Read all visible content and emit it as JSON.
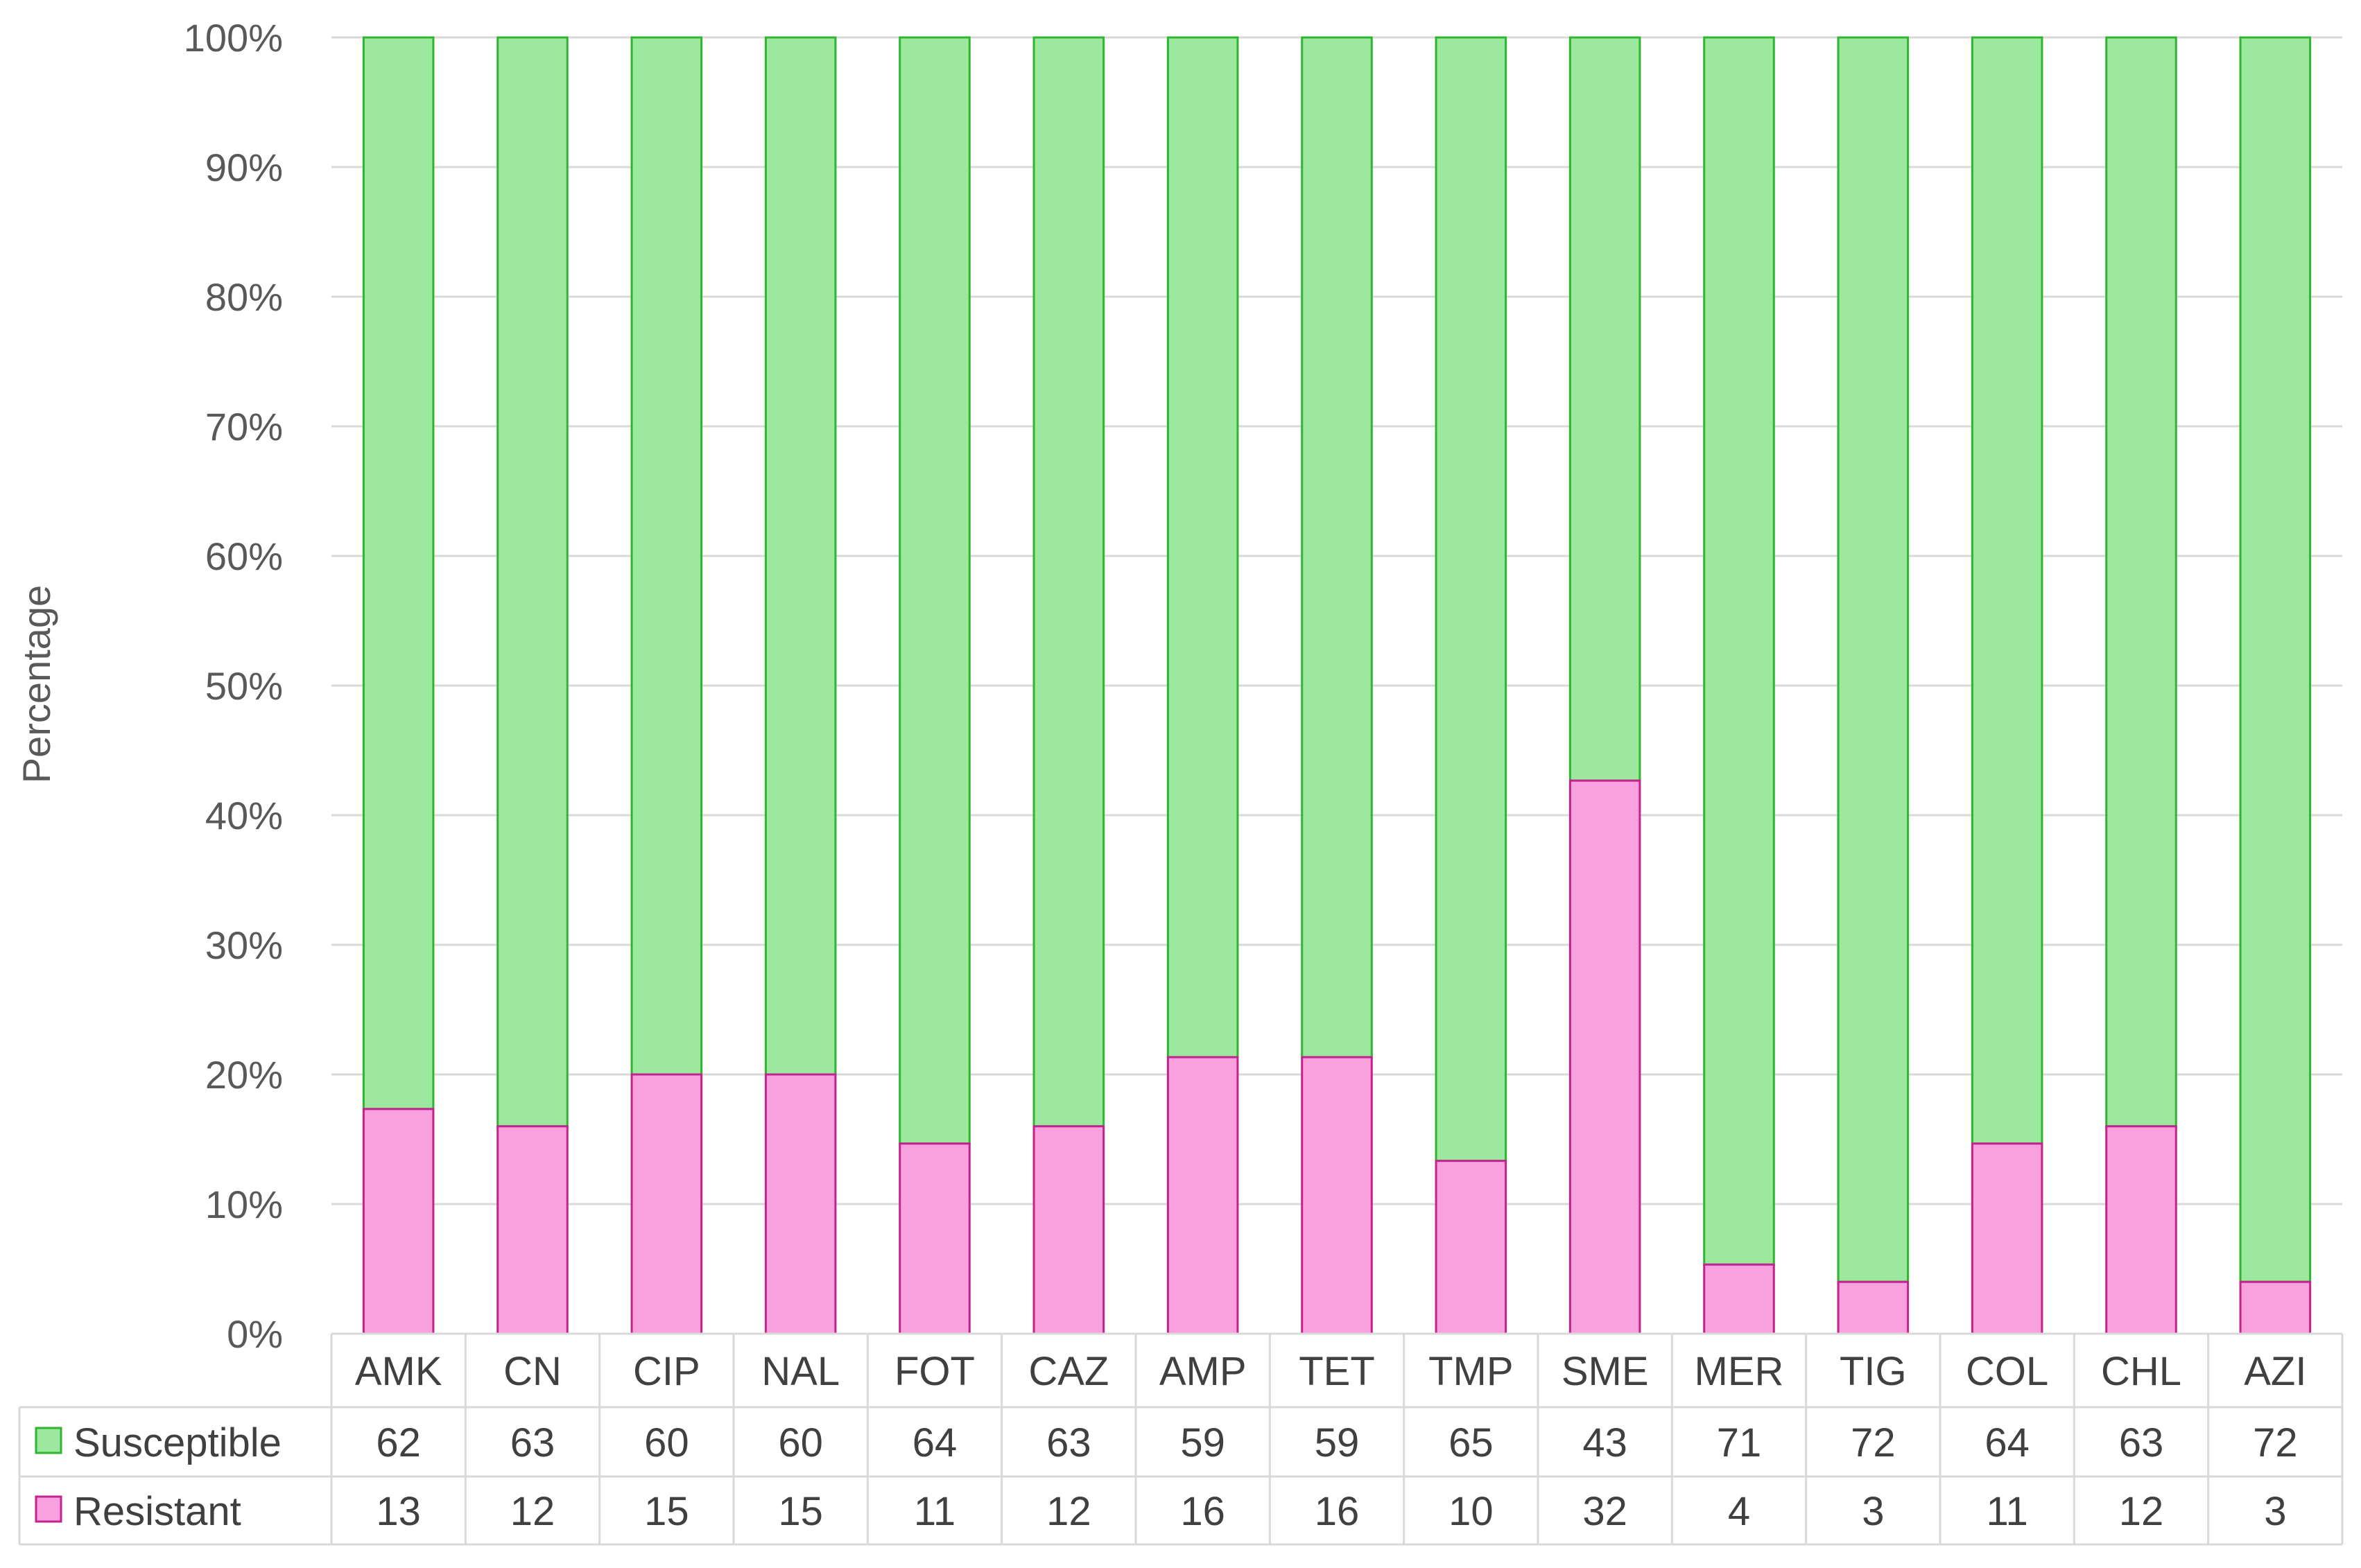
{
  "chart_data": {
    "type": "bar",
    "stacked": "percent",
    "ylabel": "Percentage",
    "xlabel": "",
    "ylim": [
      0,
      100
    ],
    "yticks": [
      "0%",
      "10%",
      "20%",
      "30%",
      "40%",
      "50%",
      "60%",
      "70%",
      "80%",
      "90%",
      "100%"
    ],
    "grid": true,
    "legend_placement": "data-table-left",
    "categories": [
      "AMK",
      "CN",
      "CIP",
      "NAL",
      "FOT",
      "CAZ",
      "AMP",
      "TET",
      "TMP",
      "SME",
      "MER",
      "TIG",
      "COL",
      "CHL",
      "AZI"
    ],
    "series": [
      {
        "name": "Susceptible",
        "color": "#9DE89F",
        "stroke": "#2FB52F",
        "values": [
          62,
          63,
          60,
          60,
          64,
          63,
          59,
          59,
          65,
          43,
          71,
          72,
          64,
          63,
          72
        ]
      },
      {
        "name": "Resistant",
        "color": "#F9A0DF",
        "stroke": "#C2238F",
        "values": [
          13,
          12,
          15,
          15,
          11,
          12,
          16,
          16,
          10,
          32,
          4,
          3,
          11,
          12,
          3
        ]
      }
    ]
  }
}
